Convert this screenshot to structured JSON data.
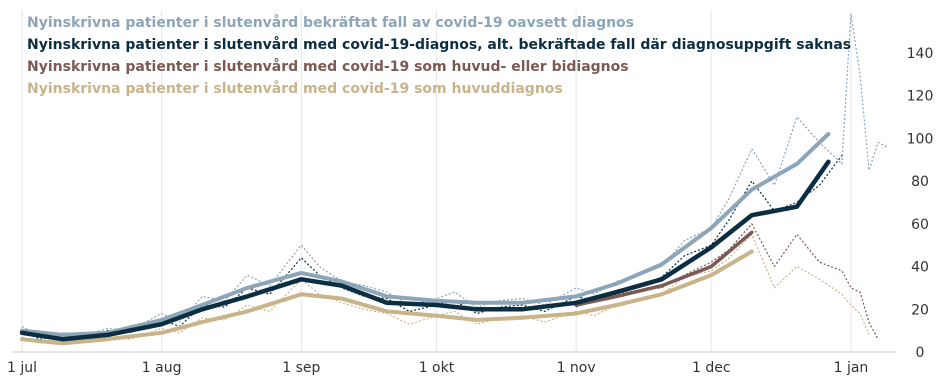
{
  "chart_data": {
    "type": "line",
    "title": "",
    "xlabel": "",
    "ylabel": "",
    "ylim": [
      0,
      160
    ],
    "y_ticks": [
      0,
      20,
      40,
      60,
      80,
      100,
      120,
      140
    ],
    "y_axis_side": "right",
    "grid": "vertical lines at month starts",
    "legend_position": "top-left",
    "x_ticks": [
      {
        "date": "2020-07-01",
        "label": "1 jul"
      },
      {
        "date": "2020-08-01",
        "label": "1 aug"
      },
      {
        "date": "2020-09-01",
        "label": "1 sep"
      },
      {
        "date": "2020-10-01",
        "label": "1 okt"
      },
      {
        "date": "2020-11-01",
        "label": "1 nov"
      },
      {
        "date": "2020-12-01",
        "label": "1 dec"
      },
      {
        "date": "2021-01-01",
        "label": "1 jan"
      }
    ],
    "series": [
      {
        "name": "Nyinskrivna patienter i slutenvård bekräftat fall av covid-19 oavsett diagnos",
        "color": "#8ca5b8",
        "smoothed": {
          "x": [
            "2020-07-01",
            "2020-07-10",
            "2020-07-20",
            "2020-08-01",
            "2020-08-10",
            "2020-08-20",
            "2020-09-01",
            "2020-09-10",
            "2020-09-20",
            "2020-10-01",
            "2020-10-10",
            "2020-10-20",
            "2020-11-01",
            "2020-11-10",
            "2020-11-20",
            "2020-12-01",
            "2020-12-10",
            "2020-12-20",
            "2020-12-27"
          ],
          "y": [
            10,
            8,
            9,
            15,
            22,
            30,
            37,
            33,
            26,
            24,
            23,
            23,
            26,
            32,
            41,
            58,
            76,
            88,
            102
          ]
        },
        "daily": {
          "x": [
            "2020-07-01",
            "2020-07-05",
            "2020-07-10",
            "2020-07-15",
            "2020-07-20",
            "2020-07-25",
            "2020-08-01",
            "2020-08-05",
            "2020-08-10",
            "2020-08-15",
            "2020-08-20",
            "2020-08-25",
            "2020-09-01",
            "2020-09-05",
            "2020-09-10",
            "2020-09-15",
            "2020-09-20",
            "2020-09-25",
            "2020-10-01",
            "2020-10-05",
            "2020-10-10",
            "2020-10-15",
            "2020-10-20",
            "2020-10-25",
            "2020-11-01",
            "2020-11-05",
            "2020-11-10",
            "2020-11-15",
            "2020-11-20",
            "2020-11-25",
            "2020-12-01",
            "2020-12-05",
            "2020-12-10",
            "2020-12-15",
            "2020-12-20",
            "2020-12-25",
            "2020-12-30",
            "2021-01-01",
            "2021-01-03",
            "2021-01-05",
            "2021-01-07",
            "2021-01-09"
          ],
          "y": [
            12,
            7,
            9,
            8,
            11,
            10,
            18,
            14,
            26,
            24,
            36,
            31,
            50,
            40,
            33,
            31,
            28,
            22,
            25,
            28,
            21,
            24,
            25,
            22,
            30,
            27,
            33,
            36,
            40,
            52,
            58,
            72,
            95,
            78,
            110,
            98,
            88,
            158,
            130,
            85,
            98,
            96
          ]
        }
      },
      {
        "name": "Nyinskrivna patienter i slutenvård med covid-19-diagnos, alt. bekräftade fall där diagnosuppgift saknas",
        "color": "#0b2e42",
        "smoothed": {
          "x": [
            "2020-07-01",
            "2020-07-10",
            "2020-07-20",
            "2020-08-01",
            "2020-08-10",
            "2020-08-20",
            "2020-09-01",
            "2020-09-10",
            "2020-09-20",
            "2020-10-01",
            "2020-10-10",
            "2020-10-20",
            "2020-11-01",
            "2020-11-10",
            "2020-11-20",
            "2020-12-01",
            "2020-12-10",
            "2020-12-20",
            "2020-12-27"
          ],
          "y": [
            9,
            6,
            8,
            13,
            20,
            26,
            34,
            31,
            23,
            22,
            20,
            20,
            23,
            28,
            34,
            49,
            64,
            68,
            89
          ]
        },
        "daily": {
          "x": [
            "2020-07-01",
            "2020-07-05",
            "2020-07-10",
            "2020-07-15",
            "2020-07-20",
            "2020-07-25",
            "2020-08-01",
            "2020-08-05",
            "2020-08-10",
            "2020-08-15",
            "2020-08-20",
            "2020-08-25",
            "2020-09-01",
            "2020-09-05",
            "2020-09-10",
            "2020-09-15",
            "2020-09-20",
            "2020-09-25",
            "2020-10-01",
            "2020-10-05",
            "2020-10-10",
            "2020-10-15",
            "2020-10-20",
            "2020-10-25",
            "2020-11-01",
            "2020-11-05",
            "2020-11-10",
            "2020-11-15",
            "2020-11-20",
            "2020-11-25",
            "2020-12-01",
            "2020-12-05",
            "2020-12-10",
            "2020-12-15",
            "2020-12-20",
            "2020-12-25",
            "2020-12-30"
          ],
          "y": [
            10,
            6,
            8,
            7,
            10,
            9,
            15,
            12,
            22,
            21,
            30,
            27,
            44,
            36,
            30,
            26,
            25,
            19,
            22,
            24,
            18,
            21,
            22,
            19,
            26,
            24,
            29,
            31,
            35,
            45,
            50,
            62,
            80,
            66,
            70,
            78,
            92
          ]
        }
      },
      {
        "name": "Nyinskrivna patienter i slutenvård med covid-19 som huvud- eller bidiagnos",
        "color": "#7a5a52",
        "smoothed": {
          "x": [
            "2020-11-01",
            "2020-11-10",
            "2020-11-20",
            "2020-12-01",
            "2020-12-10"
          ],
          "y": [
            22,
            26,
            31,
            40,
            56
          ]
        },
        "daily": {
          "x": [
            "2020-11-01",
            "2020-11-05",
            "2020-11-10",
            "2020-11-15",
            "2020-11-20",
            "2020-11-25",
            "2020-12-01",
            "2020-12-05",
            "2020-12-10",
            "2020-12-15",
            "2020-12-20",
            "2020-12-25",
            "2020-12-30",
            "2021-01-01",
            "2021-01-03",
            "2021-01-05",
            "2021-01-07"
          ],
          "y": [
            21,
            24,
            27,
            29,
            30,
            36,
            42,
            48,
            60,
            40,
            55,
            42,
            38,
            30,
            28,
            14,
            6
          ]
        }
      },
      {
        "name": "Nyinskrivna patienter i slutenvård med covid-19 som huvuddiagnos",
        "color": "#c9b48a",
        "smoothed": {
          "x": [
            "2020-07-01",
            "2020-07-10",
            "2020-07-20",
            "2020-08-01",
            "2020-08-10",
            "2020-08-20",
            "2020-09-01",
            "2020-09-10",
            "2020-09-20",
            "2020-10-01",
            "2020-10-10",
            "2020-10-20",
            "2020-11-01",
            "2020-11-10",
            "2020-11-20",
            "2020-12-01",
            "2020-12-10"
          ],
          "y": [
            6,
            4,
            6,
            9,
            14,
            19,
            27,
            25,
            19,
            17,
            15,
            16,
            18,
            22,
            27,
            36,
            47
          ]
        },
        "daily": {
          "x": [
            "2020-07-01",
            "2020-07-05",
            "2020-07-10",
            "2020-07-15",
            "2020-07-20",
            "2020-07-25",
            "2020-08-01",
            "2020-08-05",
            "2020-08-10",
            "2020-08-15",
            "2020-08-20",
            "2020-08-25",
            "2020-09-01",
            "2020-09-05",
            "2020-09-10",
            "2020-09-15",
            "2020-09-20",
            "2020-09-25",
            "2020-10-01",
            "2020-10-05",
            "2020-10-10",
            "2020-10-15",
            "2020-10-20",
            "2020-10-25",
            "2020-11-01",
            "2020-11-05",
            "2020-11-10",
            "2020-11-15",
            "2020-11-20",
            "2020-11-25",
            "2020-12-01",
            "2020-12-05",
            "2020-12-10",
            "2020-12-15",
            "2020-12-20",
            "2020-12-25",
            "2020-12-30",
            "2021-01-01",
            "2021-01-03",
            "2021-01-05"
          ],
          "y": [
            7,
            4,
            6,
            5,
            7,
            6,
            11,
            9,
            16,
            15,
            22,
            19,
            34,
            27,
            23,
            20,
            18,
            13,
            17,
            19,
            13,
            16,
            17,
            14,
            19,
            17,
            22,
            24,
            27,
            35,
            38,
            44,
            55,
            30,
            40,
            34,
            27,
            22,
            18,
            8
          ]
        }
      }
    ]
  }
}
